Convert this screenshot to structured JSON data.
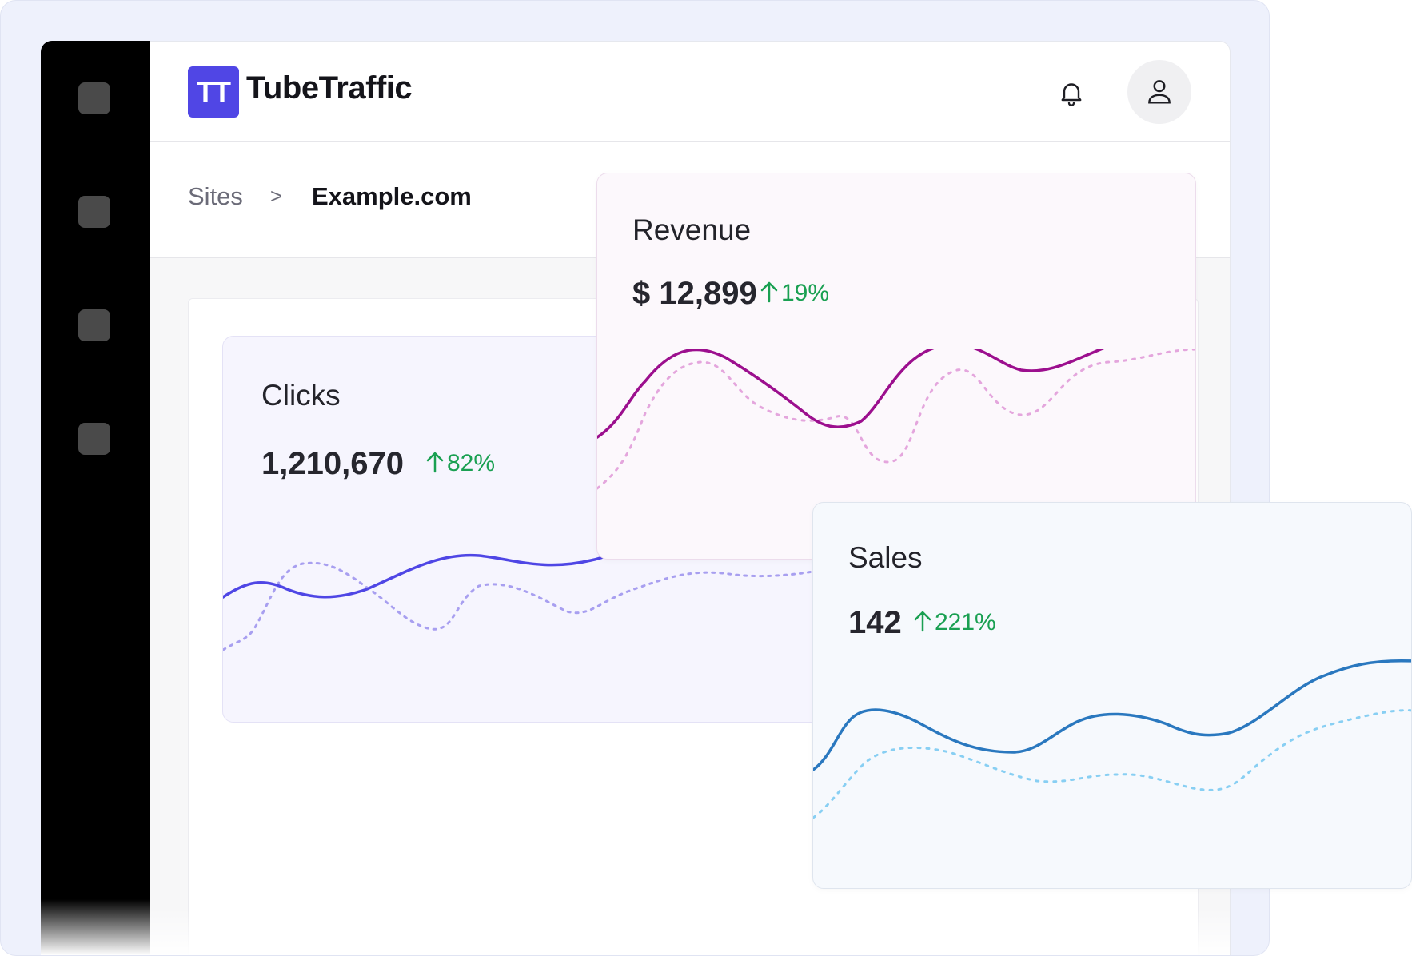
{
  "app": {
    "logo_initials": "TT",
    "name": "TubeTraffic"
  },
  "header": {
    "notification_icon": "bell-icon",
    "profile_icon": "user-icon"
  },
  "breadcrumb": {
    "root": "Sites",
    "separator": ">",
    "current": "Example.com"
  },
  "sidebar": {
    "items": [
      "nav-item",
      "nav-item",
      "nav-item",
      "nav-item"
    ]
  },
  "colors": {
    "brand": "#5046e5",
    "clicks_line": "#4f46e5",
    "clicks_prev": "#a89ff0",
    "revenue_line": "#9c0f8e",
    "revenue_prev": "#e4a6dd",
    "sales_line": "#2a78bf",
    "sales_prev": "#88cff3",
    "positive": "#1aa052"
  },
  "cards": {
    "clicks": {
      "title": "Clicks",
      "value": "1,210,670",
      "delta": "82%"
    },
    "revenue": {
      "title": "Revenue",
      "value": "$ 12,899",
      "delta": "19%"
    },
    "sales": {
      "title": "Sales",
      "value": "142",
      "delta": "221%"
    }
  }
}
